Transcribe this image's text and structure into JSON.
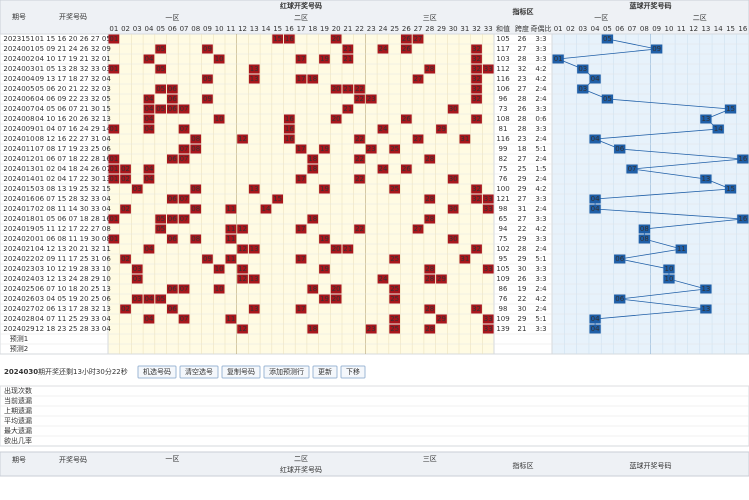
{
  "header": {
    "issue": "期号",
    "numbers": "开奖号码",
    "red_title": "红球开奖号码",
    "zones": [
      "一区",
      "二区",
      "三区"
    ],
    "indicator": "指标区",
    "indicator_cols": [
      "和值",
      "跨度",
      "奇偶比"
    ],
    "blue_title": "蓝球开奖号码",
    "blue_zones": [
      "一区",
      "二区"
    ],
    "red_cols": [
      "01",
      "02",
      "03",
      "04",
      "05",
      "06",
      "07",
      "08",
      "09",
      "10",
      "11",
      "12",
      "13",
      "14",
      "15",
      "16",
      "17",
      "18",
      "19",
      "20",
      "21",
      "22",
      "23",
      "24",
      "25",
      "26",
      "27",
      "28",
      "29",
      "30",
      "31",
      "32",
      "33"
    ],
    "blue_cols": [
      "01",
      "02",
      "03",
      "04",
      "05",
      "06",
      "07",
      "08",
      "09",
      "10",
      "11",
      "12",
      "13",
      "14",
      "15",
      "16"
    ]
  },
  "rows": [
    {
      "issue": "2023151",
      "numbers": "01 15 16 20 26 27 05",
      "red": [
        "01",
        "15",
        "16",
        "20",
        "26",
        "27"
      ],
      "blue": "05",
      "sum": 105,
      "span": 26,
      "ratio": "3:3"
    },
    {
      "issue": "2024001",
      "numbers": "05 09 21 24 26 32 09",
      "red": [
        "05",
        "09",
        "21",
        "24",
        "26",
        "32"
      ],
      "blue": "09",
      "sum": 117,
      "span": 27,
      "ratio": "3:3"
    },
    {
      "issue": "2024002",
      "numbers": "04 10 17 19 21 32 01",
      "red": [
        "04",
        "10",
        "17",
        "19",
        "21",
        "32"
      ],
      "blue": "01",
      "sum": 103,
      "span": 28,
      "ratio": "3:3"
    },
    {
      "issue": "2024003",
      "numbers": "01 05 13 28 32 33 03",
      "red": [
        "01",
        "05",
        "13",
        "28",
        "32",
        "33"
      ],
      "blue": "03",
      "sum": 112,
      "span": 32,
      "ratio": "4:2"
    },
    {
      "issue": "2024004",
      "numbers": "09 13 17 18 27 32 04",
      "red": [
        "09",
        "13",
        "17",
        "18",
        "27",
        "32"
      ],
      "blue": "04",
      "sum": 116,
      "span": 23,
      "ratio": "4:2"
    },
    {
      "issue": "2024005",
      "numbers": "05 06 20 21 22 32 03",
      "red": [
        "05",
        "06",
        "20",
        "21",
        "22",
        "32"
      ],
      "blue": "03",
      "sum": 106,
      "span": 27,
      "ratio": "2:4"
    },
    {
      "issue": "2024006",
      "numbers": "04 06 09 22 23 32 05",
      "red": [
        "04",
        "06",
        "09",
        "22",
        "23",
        "32"
      ],
      "blue": "05",
      "sum": 96,
      "span": 28,
      "ratio": "2:4"
    },
    {
      "issue": "2024007",
      "numbers": "04 05 06 07 21 30 15",
      "red": [
        "04",
        "05",
        "06",
        "07",
        "21",
        "30"
      ],
      "blue": "15",
      "sum": 73,
      "span": 26,
      "ratio": "3:3"
    },
    {
      "issue": "2024008",
      "numbers": "04 10 16 20 26 32 13",
      "red": [
        "04",
        "10",
        "16",
        "20",
        "26",
        "32"
      ],
      "blue": "13",
      "sum": 108,
      "span": 28,
      "ratio": "0:6"
    },
    {
      "issue": "2024009",
      "numbers": "01 04 07 16 24 29 14",
      "red": [
        "01",
        "04",
        "07",
        "16",
        "24",
        "29"
      ],
      "blue": "14",
      "sum": 81,
      "span": 28,
      "ratio": "3:3"
    },
    {
      "issue": "2024010",
      "numbers": "08 12 16 22 27 31 04",
      "red": [
        "08",
        "12",
        "16",
        "22",
        "27",
        "31"
      ],
      "blue": "04",
      "sum": 116,
      "span": 23,
      "ratio": "2:4"
    },
    {
      "issue": "2024011",
      "numbers": "07 08 17 19 23 25 06",
      "red": [
        "07",
        "08",
        "17",
        "19",
        "23",
        "25"
      ],
      "blue": "06",
      "sum": 99,
      "span": 18,
      "ratio": "5:1"
    },
    {
      "issue": "2024012",
      "numbers": "01 06 07 18 22 28 16",
      "red": [
        "01",
        "06",
        "07",
        "18",
        "22",
        "28"
      ],
      "blue": "16",
      "sum": 82,
      "span": 27,
      "ratio": "2:4"
    },
    {
      "issue": "2024013",
      "numbers": "01 02 04 18 24 26 07",
      "red": [
        "01",
        "02",
        "04",
        "18",
        "24",
        "26"
      ],
      "blue": "07",
      "sum": 75,
      "span": 25,
      "ratio": "1:5"
    },
    {
      "issue": "2024014",
      "numbers": "01 02 04 17 22 30 13",
      "red": [
        "01",
        "02",
        "04",
        "17",
        "22",
        "30"
      ],
      "blue": "13",
      "sum": 76,
      "span": 29,
      "ratio": "2:4"
    },
    {
      "issue": "2024015",
      "numbers": "03 08 13 19 25 32 15",
      "red": [
        "03",
        "08",
        "13",
        "19",
        "25",
        "32"
      ],
      "blue": "15",
      "sum": 100,
      "span": 29,
      "ratio": "4:2"
    },
    {
      "issue": "2024016",
      "numbers": "06 07 15 28 32 33 04",
      "red": [
        "06",
        "07",
        "15",
        "28",
        "32",
        "33"
      ],
      "blue": "04",
      "sum": 121,
      "span": 27,
      "ratio": "3:3"
    },
    {
      "issue": "2024017",
      "numbers": "02 08 11 14 30 33 04",
      "red": [
        "02",
        "08",
        "11",
        "14",
        "30",
        "33"
      ],
      "blue": "04",
      "sum": 98,
      "span": 31,
      "ratio": "2:4"
    },
    {
      "issue": "2024018",
      "numbers": "01 05 06 07 18 28 16",
      "red": [
        "01",
        "05",
        "06",
        "07",
        "18",
        "28"
      ],
      "blue": "16",
      "sum": 65,
      "span": 27,
      "ratio": "3:3"
    },
    {
      "issue": "2024019",
      "numbers": "05 11 12 17 22 27 08",
      "red": [
        "05",
        "11",
        "12",
        "17",
        "22",
        "27"
      ],
      "blue": "08",
      "sum": 94,
      "span": 22,
      "ratio": "4:2"
    },
    {
      "issue": "2024020",
      "numbers": "01 06 08 11 19 30 08",
      "red": [
        "01",
        "06",
        "08",
        "11",
        "19",
        "30"
      ],
      "blue": "08",
      "sum": 75,
      "span": 29,
      "ratio": "3:3"
    },
    {
      "issue": "2024021",
      "numbers": "04 12 13 20 21 32 11",
      "red": [
        "04",
        "12",
        "13",
        "20",
        "21",
        "32"
      ],
      "blue": "11",
      "sum": 102,
      "span": 28,
      "ratio": "2:4"
    },
    {
      "issue": "2024022",
      "numbers": "02 09 11 17 25 31 06",
      "red": [
        "02",
        "09",
        "11",
        "17",
        "25",
        "31"
      ],
      "blue": "06",
      "sum": 95,
      "span": 29,
      "ratio": "5:1"
    },
    {
      "issue": "2024023",
      "numbers": "03 10 12 19 28 33 10",
      "red": [
        "03",
        "10",
        "12",
        "19",
        "28",
        "33"
      ],
      "blue": "10",
      "sum": 105,
      "span": 30,
      "ratio": "3:3"
    },
    {
      "issue": "2024024",
      "numbers": "03 12 13 24 28 29 10",
      "red": [
        "03",
        "12",
        "13",
        "24",
        "28",
        "29"
      ],
      "blue": "10",
      "sum": 109,
      "span": 26,
      "ratio": "3:3"
    },
    {
      "issue": "2024025",
      "numbers": "06 07 10 18 20 25 13",
      "red": [
        "06",
        "07",
        "10",
        "18",
        "20",
        "25"
      ],
      "blue": "13",
      "sum": 86,
      "span": 19,
      "ratio": "2:4"
    },
    {
      "issue": "2024026",
      "numbers": "03 04 05 19 20 25 06",
      "red": [
        "03",
        "04",
        "05",
        "19",
        "20",
        "25"
      ],
      "blue": "06",
      "sum": 76,
      "span": 22,
      "ratio": "4:2"
    },
    {
      "issue": "2024027",
      "numbers": "02 06 13 17 28 32 13",
      "red": [
        "02",
        "06",
        "13",
        "17",
        "28",
        "32"
      ],
      "blue": "13",
      "sum": 98,
      "span": 30,
      "ratio": "2:4"
    },
    {
      "issue": "2024028",
      "numbers": "04 07 11 25 29 33 04",
      "red": [
        "04",
        "07",
        "11",
        "25",
        "29",
        "33"
      ],
      "blue": "04",
      "sum": 109,
      "span": 29,
      "ratio": "5:1"
    },
    {
      "issue": "2024029",
      "numbers": "12 18 23 25 28 33 04",
      "red": [
        "12",
        "18",
        "23",
        "25",
        "28",
        "33"
      ],
      "blue": "04",
      "sum": 139,
      "span": 21,
      "ratio": "3:3"
    }
  ],
  "predict": [
    "预测1",
    "预测2"
  ],
  "toolbar": {
    "issue": "2024030",
    "countdown": "期开奖还剩13小时30分22秒",
    "buttons": [
      "机选号码",
      "清空选号",
      "复制号码",
      "添加预测行",
      "更新",
      "下移"
    ]
  },
  "stats": {
    "labels": [
      "出现次数",
      "当前遗漏",
      "上期遗漏",
      "平均遗漏",
      "最大遗漏",
      "欲出几率"
    ]
  },
  "footer": {
    "issue": "期号",
    "numbers": "开奖号码",
    "zones": [
      "一区",
      "二区",
      "三区"
    ],
    "red_title": "红球开奖号码",
    "indicator": "指标区",
    "blue_title": "蓝球开奖号码"
  }
}
